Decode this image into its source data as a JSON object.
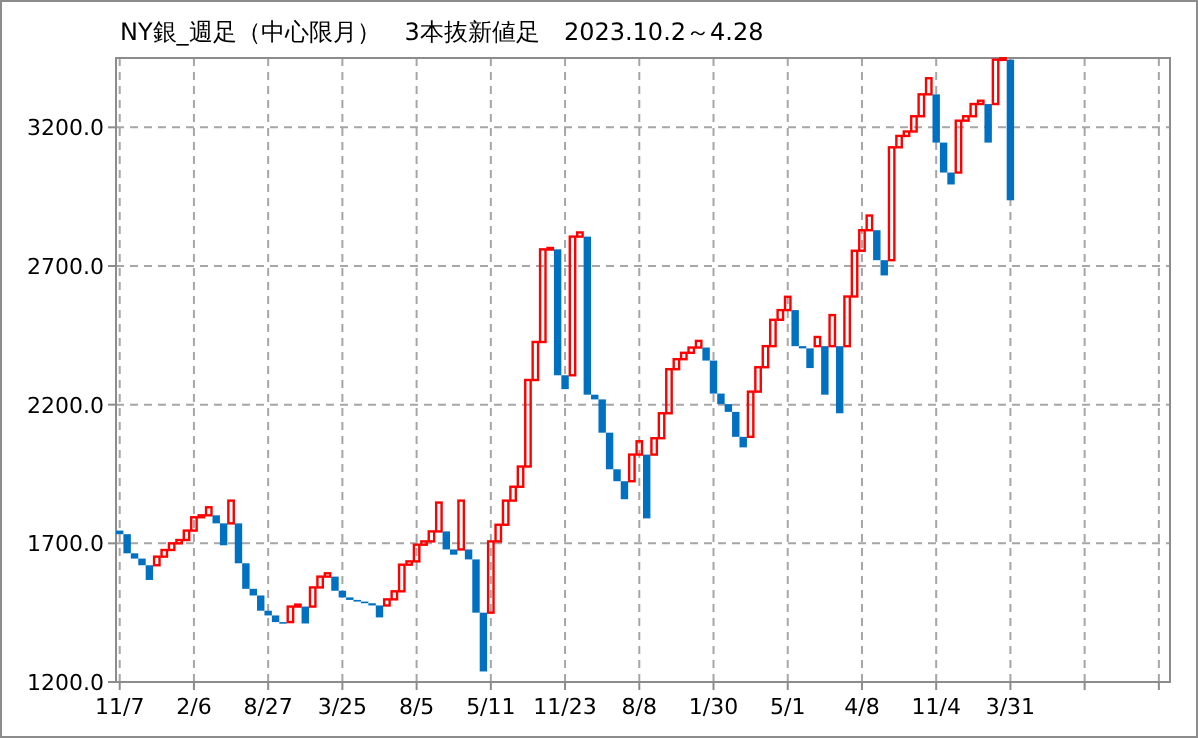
{
  "chart_data": {
    "type": "candlestick",
    "title": "NY銀_週足（中心限月）　3本抜新値足　2023.10.2～4.28",
    "categories": [
      "11/7",
      null,
      null,
      null,
      null,
      null,
      null,
      null,
      null,
      null,
      "2/6",
      null,
      null,
      null,
      null,
      null,
      null,
      null,
      null,
      null,
      "8/27",
      null,
      null,
      null,
      null,
      null,
      null,
      null,
      null,
      null,
      "3/25",
      null,
      null,
      null,
      null,
      null,
      null,
      null,
      null,
      null,
      "8/5",
      null,
      null,
      null,
      null,
      null,
      null,
      null,
      null,
      null,
      "5/11",
      null,
      null,
      null,
      null,
      null,
      null,
      null,
      null,
      null,
      "11/23",
      null,
      null,
      null,
      null,
      null,
      null,
      null,
      null,
      null,
      "8/8",
      null,
      null,
      null,
      null,
      null,
      null,
      null,
      null,
      null,
      "1/30",
      null,
      null,
      null,
      null,
      null,
      null,
      null,
      null,
      null,
      "5/1",
      null,
      null,
      null,
      null,
      null,
      null,
      null,
      null,
      null,
      "4/8",
      null,
      null,
      null,
      null,
      null,
      null,
      null,
      null,
      null,
      "11/4",
      null,
      null,
      null,
      null,
      null,
      null,
      null,
      null,
      null,
      "3/31",
      null,
      null,
      null,
      null,
      null,
      null,
      null,
      null,
      null,
      null,
      null,
      null,
      null,
      null,
      null,
      null,
      null,
      null,
      null,
      null,
      null
    ],
    "ohlc": [
      [
        1746,
        1746,
        1733,
        1733
      ],
      [
        1733,
        1733,
        1664,
        1664
      ],
      [
        1664,
        1664,
        1645,
        1645
      ],
      [
        1645,
        1645,
        1621,
        1621
      ],
      [
        1621,
        1621,
        1568,
        1568
      ],
      [
        1621,
        1652,
        1621,
        1652
      ],
      [
        1652,
        1676,
        1652,
        1676
      ],
      [
        1676,
        1700,
        1676,
        1700
      ],
      [
        1700,
        1712,
        1700,
        1712
      ],
      [
        1712,
        1746,
        1712,
        1746
      ],
      [
        1746,
        1794,
        1746,
        1794
      ],
      [
        1794,
        1801,
        1794,
        1801
      ],
      [
        1801,
        1830,
        1801,
        1830
      ],
      [
        1801,
        1801,
        1772,
        1772
      ],
      [
        1772,
        1772,
        1693,
        1693
      ],
      [
        1772,
        1854,
        1772,
        1854
      ],
      [
        1772,
        1772,
        1628,
        1628
      ],
      [
        1628,
        1628,
        1536,
        1536
      ],
      [
        1536,
        1536,
        1512,
        1512
      ],
      [
        1512,
        1512,
        1457,
        1457
      ],
      [
        1457,
        1457,
        1440,
        1440
      ],
      [
        1440,
        1440,
        1416,
        1416
      ],
      [
        1416,
        1416,
        1411,
        1411
      ],
      [
        1416,
        1472,
        1416,
        1472
      ],
      [
        1472,
        1479,
        1472,
        1479
      ],
      [
        1472,
        1472,
        1411,
        1411
      ],
      [
        1472,
        1541,
        1472,
        1541
      ],
      [
        1541,
        1580,
        1541,
        1580
      ],
      [
        1580,
        1592,
        1580,
        1592
      ],
      [
        1580,
        1580,
        1529,
        1529
      ],
      [
        1529,
        1529,
        1505,
        1505
      ],
      [
        1505,
        1505,
        1496,
        1496
      ],
      [
        1496,
        1496,
        1490,
        1490
      ],
      [
        1490,
        1490,
        1484,
        1484
      ],
      [
        1484,
        1484,
        1476,
        1476
      ],
      [
        1476,
        1476,
        1433,
        1433
      ],
      [
        1476,
        1498,
        1476,
        1498
      ],
      [
        1498,
        1527,
        1498,
        1527
      ],
      [
        1527,
        1623,
        1527,
        1623
      ],
      [
        1623,
        1635,
        1623,
        1635
      ],
      [
        1635,
        1695,
        1635,
        1695
      ],
      [
        1695,
        1707,
        1695,
        1707
      ],
      [
        1707,
        1743,
        1707,
        1743
      ],
      [
        1743,
        1847,
        1743,
        1847
      ],
      [
        1743,
        1743,
        1678,
        1678
      ],
      [
        1678,
        1678,
        1659,
        1659
      ],
      [
        1678,
        1854,
        1678,
        1854
      ],
      [
        1678,
        1678,
        1642,
        1642
      ],
      [
        1642,
        1642,
        1450,
        1450
      ],
      [
        1450,
        1450,
        1238,
        1238
      ],
      [
        1450,
        1707,
        1450,
        1707
      ],
      [
        1707,
        1767,
        1707,
        1767
      ],
      [
        1767,
        1854,
        1767,
        1854
      ],
      [
        1854,
        1904,
        1854,
        1904
      ],
      [
        1904,
        1977,
        1904,
        1977
      ],
      [
        1977,
        2289,
        1977,
        2289
      ],
      [
        2289,
        2426,
        2289,
        2426
      ],
      [
        2426,
        2760,
        2426,
        2760
      ],
      [
        2760,
        2765,
        2760,
        2765
      ],
      [
        2760,
        2760,
        2306,
        2306
      ],
      [
        2306,
        2306,
        2256,
        2256
      ],
      [
        2306,
        2806,
        2306,
        2806
      ],
      [
        2806,
        2821,
        2806,
        2821
      ],
      [
        2806,
        2806,
        2236,
        2236
      ],
      [
        2236,
        2236,
        2219,
        2219
      ],
      [
        2219,
        2219,
        2099,
        2099
      ],
      [
        2099,
        2099,
        1967,
        1967
      ],
      [
        1967,
        1967,
        1924,
        1924
      ],
      [
        1924,
        1924,
        1859,
        1859
      ],
      [
        1924,
        2020,
        1924,
        2020
      ],
      [
        2020,
        2068,
        2020,
        2068
      ],
      [
        2020,
        2020,
        1790,
        1790
      ],
      [
        2020,
        2079,
        2020,
        2079
      ],
      [
        2079,
        2169,
        2079,
        2169
      ],
      [
        2169,
        2328,
        2169,
        2328
      ],
      [
        2328,
        2364,
        2328,
        2364
      ],
      [
        2364,
        2387,
        2364,
        2387
      ],
      [
        2387,
        2406,
        2387,
        2406
      ],
      [
        2406,
        2430,
        2406,
        2430
      ],
      [
        2406,
        2406,
        2359,
        2359
      ],
      [
        2359,
        2359,
        2240,
        2240
      ],
      [
        2240,
        2240,
        2202,
        2202
      ],
      [
        2202,
        2202,
        2174,
        2174
      ],
      [
        2174,
        2174,
        2084,
        2084
      ],
      [
        2084,
        2084,
        2046,
        2046
      ],
      [
        2084,
        2247,
        2084,
        2247
      ],
      [
        2247,
        2335,
        2247,
        2335
      ],
      [
        2335,
        2411,
        2335,
        2411
      ],
      [
        2411,
        2506,
        2411,
        2506
      ],
      [
        2506,
        2541,
        2506,
        2541
      ],
      [
        2541,
        2589,
        2541,
        2589
      ],
      [
        2541,
        2541,
        2411,
        2411
      ],
      [
        2411,
        2411,
        2403,
        2403
      ],
      [
        2403,
        2403,
        2332,
        2332
      ],
      [
        2411,
        2444,
        2411,
        2444
      ],
      [
        2411,
        2411,
        2236,
        2236
      ],
      [
        2411,
        2523,
        2411,
        2523
      ],
      [
        2411,
        2411,
        2169,
        2169
      ],
      [
        2411,
        2590,
        2411,
        2590
      ],
      [
        2590,
        2755,
        2590,
        2755
      ],
      [
        2755,
        2829,
        2755,
        2829
      ],
      [
        2829,
        2882,
        2829,
        2882
      ],
      [
        2829,
        2829,
        2721,
        2721
      ],
      [
        2721,
        2721,
        2666,
        2666
      ],
      [
        2721,
        3128,
        2721,
        3128
      ],
      [
        3128,
        3169,
        3128,
        3169
      ],
      [
        3169,
        3185,
        3169,
        3185
      ],
      [
        3185,
        3240,
        3185,
        3240
      ],
      [
        3240,
        3319,
        3240,
        3319
      ],
      [
        3319,
        3377,
        3319,
        3377
      ],
      [
        3319,
        3319,
        3145,
        3145
      ],
      [
        3145,
        3145,
        3037,
        3037
      ],
      [
        3037,
        3037,
        2994,
        2994
      ],
      [
        3037,
        3224,
        3037,
        3224
      ],
      [
        3224,
        3240,
        3224,
        3240
      ],
      [
        3240,
        3284,
        3240,
        3284
      ],
      [
        3284,
        3296,
        3284,
        3296
      ],
      [
        3284,
        3284,
        3145,
        3145
      ],
      [
        3284,
        3444,
        3284,
        3444
      ],
      [
        3444,
        3449,
        3444,
        3449
      ],
      [
        3444,
        3444,
        2937,
        2937
      ],
      null,
      null,
      null,
      null,
      null,
      null,
      null,
      null,
      null,
      null,
      null,
      null,
      null,
      null,
      null,
      null,
      null,
      null,
      null,
      null,
      null
    ],
    "colors": [
      "#0070c0",
      "#0070c0",
      "#0070c0",
      "#0070c0",
      "#0070c0",
      "#ff0000",
      "#ff0000",
      "#ff0000",
      "#ff0000",
      "#ff0000",
      "#ff0000",
      "#ff0000",
      "#ff0000",
      "#0070c0",
      "#0070c0",
      "#ff0000",
      "#0070c0",
      "#0070c0",
      "#0070c0",
      "#0070c0",
      "#0070c0",
      "#0070c0",
      "#0070c0",
      "#ff0000",
      "#ff0000",
      "#0070c0",
      "#ff0000",
      "#ff0000",
      "#ff0000",
      "#0070c0",
      "#0070c0",
      "#0070c0",
      "#0070c0",
      "#0070c0",
      "#0070c0",
      "#0070c0",
      "#ff0000",
      "#ff0000",
      "#ff0000",
      "#ff0000",
      "#ff0000",
      "#ff0000",
      "#ff0000",
      "#ff0000",
      "#0070c0",
      "#0070c0",
      "#ff0000",
      "#0070c0",
      "#0070c0",
      "#0070c0",
      "#ff0000",
      "#ff0000",
      "#ff0000",
      "#ff0000",
      "#ff0000",
      "#ff0000",
      "#ff0000",
      "#ff0000",
      "#ff0000",
      "#0070c0",
      "#0070c0",
      "#ff0000",
      "#ff0000",
      "#0070c0",
      "#0070c0",
      "#0070c0",
      "#0070c0",
      "#0070c0",
      "#0070c0",
      "#ff0000",
      "#ff0000",
      "#0070c0",
      "#ff0000",
      "#ff0000",
      "#ff0000",
      "#ff0000",
      "#ff0000",
      "#ff0000",
      "#ff0000",
      "#0070c0",
      "#0070c0",
      "#0070c0",
      "#0070c0",
      "#0070c0",
      "#0070c0",
      "#ff0000",
      "#ff0000",
      "#ff0000",
      "#ff0000",
      "#ff0000",
      "#ff0000",
      "#0070c0",
      "#0070c0",
      "#0070c0",
      "#ff0000",
      "#0070c0",
      "#ff0000",
      "#0070c0",
      "#ff0000",
      "#ff0000",
      "#ff0000",
      "#ff0000",
      "#0070c0",
      "#0070c0",
      "#ff0000",
      "#ff0000",
      "#ff0000",
      "#ff0000",
      "#ff0000",
      "#ff0000",
      "#0070c0",
      "#0070c0",
      "#0070c0",
      "#ff0000",
      "#ff0000",
      "#ff0000",
      "#ff0000",
      "#0070c0",
      "#ff0000",
      "#ff0000",
      "#0070c0",
      null,
      null,
      null,
      null,
      null,
      null,
      null,
      null,
      null,
      null,
      null,
      null,
      null,
      null,
      null,
      null,
      null,
      null,
      null,
      null,
      null
    ],
    "ylim": [
      1200,
      3450
    ],
    "yticks": [
      {
        "value": 1200,
        "label": "1200.0"
      },
      {
        "value": 1700,
        "label": "1700.0"
      },
      {
        "value": 2200,
        "label": "2200.0"
      },
      {
        "value": 2700,
        "label": "2700.0"
      },
      {
        "value": 3200,
        "label": "3200.0"
      }
    ],
    "grid": true
  }
}
